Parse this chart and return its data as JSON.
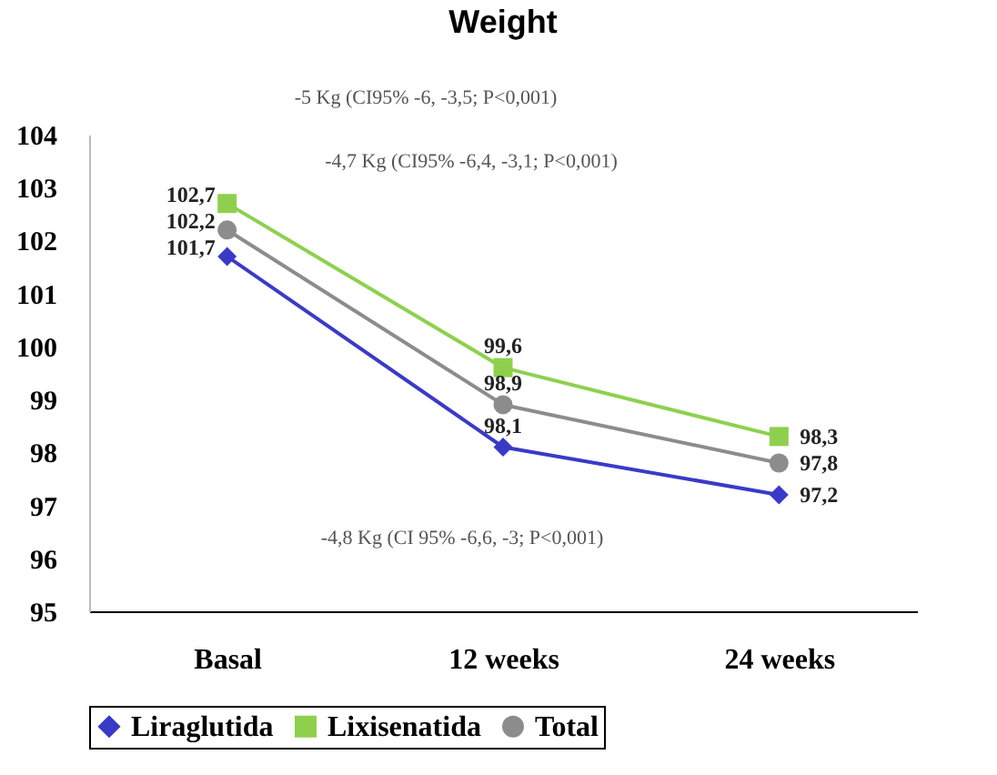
{
  "chart_data": {
    "type": "line",
    "title": "Weight",
    "categories": [
      "Basal",
      "12 weeks",
      "24 weeks"
    ],
    "series": [
      {
        "name": "Liraglutida",
        "color": "#3a3ac8",
        "marker": "diamond",
        "line_style": "solid",
        "values": [
          101.7,
          98.1,
          97.2
        ],
        "value_labels": [
          "101,7",
          "98,1",
          "97,2"
        ]
      },
      {
        "name": "Lixisenatida",
        "color": "#8ed04e",
        "marker": "square",
        "line_style": "solid",
        "values": [
          102.7,
          99.6,
          98.3
        ],
        "value_labels": [
          "102,7",
          "99,6",
          "98,3"
        ]
      },
      {
        "name": "Total",
        "color": "#8c8c8c",
        "marker": "circle",
        "line_style": "solid",
        "values": [
          102.2,
          98.9,
          97.8
        ],
        "value_labels": [
          "102,2",
          "98,9",
          "97,8"
        ]
      }
    ],
    "ylim": [
      95,
      104
    ],
    "yticks": [
      95,
      96,
      97,
      98,
      99,
      100,
      101,
      102,
      103,
      104
    ],
    "grid": false,
    "legend": "bottom",
    "annotations": [
      "-5 Kg (CI95% -6, -3,5; P<0,001)",
      "-4,7 Kg (CI95% -6,4, -3,1; P<0,001)",
      "-4,8 Kg (CI 95% -6,6, -3; P<0,001)"
    ]
  }
}
